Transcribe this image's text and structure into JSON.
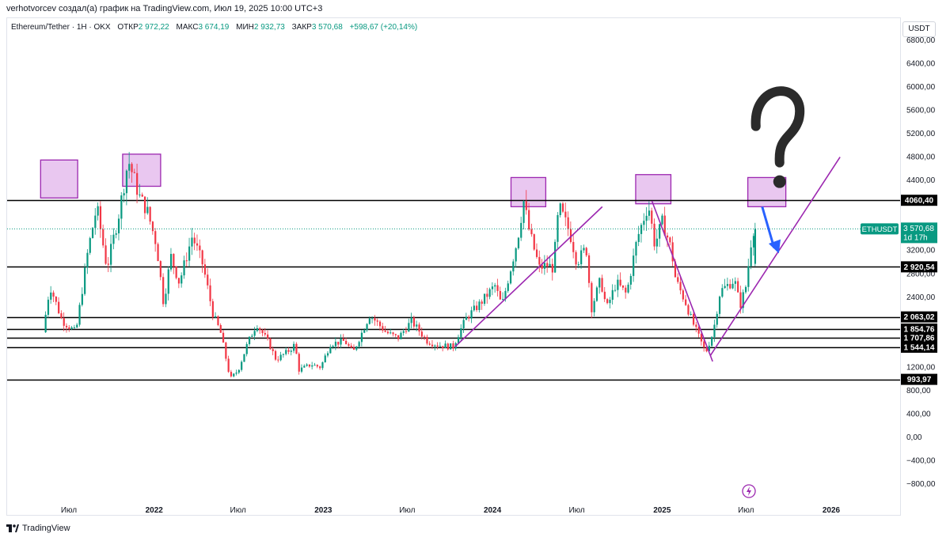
{
  "header": {
    "caption": "verhotvorcev создал(а) график на TradingView.com, Июл 19, 2025 10:00 UTC+3"
  },
  "legend": {
    "symbol": "Ethereum/Tether · 1H · OKX",
    "open_label": "ОТКР",
    "open_value": "2 972,22",
    "high_label": "МАКС",
    "high_value": "3 674,19",
    "low_label": "МИН",
    "low_value": "2 932,73",
    "close_label": "ЗАКР",
    "close_value": "3 570,68",
    "change": "+598,67 (+20,14%)"
  },
  "price_axis": {
    "currency": "USDT"
  },
  "footer": {
    "brand": "TradingView"
  },
  "colors": {
    "up": "#089981",
    "down": "#f23645",
    "zone_fill": "#e9c7f0",
    "zone_stroke": "#9c27b0",
    "trendline": "#9c27b0",
    "arrow": "#2962ff",
    "level": "#000000",
    "price_tag": "#089981"
  },
  "icons": {
    "lightning": "lightning-icon",
    "question_mark": "question-mark-annotation",
    "arrow": "arrow-annotation"
  },
  "chart_data": {
    "type": "candlestick",
    "symbol": "ETHUSDT",
    "timeframe": "1H",
    "y_ticks": [
      -800,
      -400,
      0,
      400,
      800,
      1200,
      2400,
      2800,
      3200,
      4400,
      4800,
      5200,
      5600,
      6000,
      6400,
      6800
    ],
    "y_tick_labels": [
      "−800,00",
      "−400,00",
      "0,00",
      "400,00",
      "800,00",
      "1200,00",
      "2400,00",
      "2800,00",
      "3200,00",
      "4400,00",
      "4800,00",
      "5200,00",
      "5600,00",
      "6000,00",
      "6400,00",
      "6800,00"
    ],
    "x_ticks": [
      {
        "date": "2021-07-01",
        "label": "Июл",
        "bold": false
      },
      {
        "date": "2022-01-01",
        "label": "2022",
        "bold": true
      },
      {
        "date": "2022-07-01",
        "label": "Июл",
        "bold": false
      },
      {
        "date": "2023-01-01",
        "label": "2023",
        "bold": true
      },
      {
        "date": "2023-07-01",
        "label": "Июл",
        "bold": false
      },
      {
        "date": "2024-01-01",
        "label": "2024",
        "bold": true
      },
      {
        "date": "2024-07-01",
        "label": "Июл",
        "bold": false
      },
      {
        "date": "2025-01-01",
        "label": "2025",
        "bold": true
      },
      {
        "date": "2025-07-01",
        "label": "Июл",
        "bold": false
      },
      {
        "date": "2026-01-01",
        "label": "2026",
        "bold": true
      }
    ],
    "levels": [
      {
        "value": 4060.4,
        "label": "4060,40"
      },
      {
        "value": 2920.54,
        "label": "2 920,54"
      },
      {
        "value": 2063.02,
        "label": "2 063,02"
      },
      {
        "value": 1854.76,
        "label": "1 854,76"
      },
      {
        "value": 1707.86,
        "label": "1 707,86"
      },
      {
        "value": 1544.14,
        "label": "1 544,14"
      },
      {
        "value": 993.97,
        "label": "993,97"
      }
    ],
    "last_price": {
      "symbol_label": "ETHUSDT",
      "value": 3570.68,
      "value_label": "3 570,68",
      "countdown": "1d 17h"
    },
    "path_points": [
      [
        "2021-05-10",
        1800
      ],
      [
        "2021-05-25",
        2600
      ],
      [
        "2021-06-20",
        2000
      ],
      [
        "2021-07-20",
        1800
      ],
      [
        "2021-08-15",
        3200
      ],
      [
        "2021-09-03",
        3950
      ],
      [
        "2021-09-25",
        2900
      ],
      [
        "2021-10-20",
        3800
      ],
      [
        "2021-11-10",
        4750
      ],
      [
        "2021-12-05",
        4100
      ],
      [
        "2021-12-20",
        3900
      ],
      [
        "2022-01-10",
        3300
      ],
      [
        "2022-01-25",
        2300
      ],
      [
        "2022-02-10",
        3100
      ],
      [
        "2022-02-28",
        2650
      ],
      [
        "2022-03-28",
        3450
      ],
      [
        "2022-04-20",
        2950
      ],
      [
        "2022-05-12",
        2100
      ],
      [
        "2022-05-28",
        1800
      ],
      [
        "2022-06-18",
        1000
      ],
      [
        "2022-07-05",
        1150
      ],
      [
        "2022-07-25",
        1600
      ],
      [
        "2022-08-14",
        1950
      ],
      [
        "2022-09-10",
        1600
      ],
      [
        "2022-09-25",
        1330
      ],
      [
        "2022-10-25",
        1500
      ],
      [
        "2022-11-05",
        1600
      ],
      [
        "2022-11-12",
        1150
      ],
      [
        "2022-12-10",
        1250
      ],
      [
        "2022-12-30",
        1200
      ],
      [
        "2023-01-20",
        1600
      ],
      [
        "2023-02-20",
        1650
      ],
      [
        "2023-03-10",
        1450
      ],
      [
        "2023-04-15",
        2100
      ],
      [
        "2023-05-20",
        1800
      ],
      [
        "2023-06-15",
        1700
      ],
      [
        "2023-07-14",
        1990
      ],
      [
        "2023-08-17",
        1650
      ],
      [
        "2023-09-10",
        1580
      ],
      [
        "2023-10-12",
        1550
      ],
      [
        "2023-10-25",
        1800
      ],
      [
        "2023-11-10",
        2050
      ],
      [
        "2023-12-10",
        2300
      ],
      [
        "2024-01-10",
        2600
      ],
      [
        "2024-01-25",
        2250
      ],
      [
        "2024-02-28",
        3400
      ],
      [
        "2024-03-12",
        4050
      ],
      [
        "2024-03-25",
        3500
      ],
      [
        "2024-04-15",
        2900
      ],
      [
        "2024-05-01",
        2950
      ],
      [
        "2024-05-15",
        2900
      ],
      [
        "2024-05-27",
        3950
      ],
      [
        "2024-06-20",
        3500
      ],
      [
        "2024-07-05",
        3000
      ],
      [
        "2024-07-25",
        3250
      ],
      [
        "2024-08-05",
        2200
      ],
      [
        "2024-08-25",
        2700
      ],
      [
        "2024-09-07",
        2200
      ],
      [
        "2024-09-28",
        2650
      ],
      [
        "2024-10-20",
        2450
      ],
      [
        "2024-11-12",
        3400
      ],
      [
        "2024-12-06",
        4000
      ],
      [
        "2024-12-20",
        3300
      ],
      [
        "2025-01-06",
        3700
      ],
      [
        "2025-01-25",
        3200
      ],
      [
        "2025-02-03",
        2700
      ],
      [
        "2025-02-25",
        2300
      ],
      [
        "2025-03-10",
        2000
      ],
      [
        "2025-04-09",
        1450
      ],
      [
        "2025-04-25",
        1800
      ],
      [
        "2025-05-10",
        2500
      ],
      [
        "2025-06-10",
        2700
      ],
      [
        "2025-06-22",
        2250
      ],
      [
        "2025-07-05",
        2600
      ],
      [
        "2025-07-19",
        3570
      ]
    ],
    "zones": [
      {
        "start": "2021-05-01",
        "end": "2021-07-20",
        "low": 4100,
        "high": 4750
      },
      {
        "start": "2021-10-25",
        "end": "2022-01-15",
        "low": 4300,
        "high": 4850
      },
      {
        "start": "2024-02-10",
        "end": "2024-04-25",
        "low": 3950,
        "high": 4450
      },
      {
        "start": "2024-11-05",
        "end": "2025-01-20",
        "low": 4000,
        "high": 4500
      },
      {
        "start": "2025-07-05",
        "end": "2025-09-25",
        "low": 3950,
        "high": 4450
      }
    ],
    "trendlines": [
      {
        "from": [
          "2023-10-12",
          1550
        ],
        "to": [
          "2024-08-25",
          3950
        ]
      },
      {
        "from": [
          "2024-12-10",
          4050
        ],
        "to": [
          "2025-04-20",
          1300
        ]
      },
      {
        "from": [
          "2025-04-15",
          1400
        ],
        "to": [
          "2026-01-20",
          4800
        ]
      }
    ],
    "arrow": {
      "from": [
        "2025-08-05",
        3950
      ],
      "to": [
        "2025-09-10",
        3150
      ]
    },
    "question_mark": {
      "date": "2025-09-15",
      "value": 5300
    }
  }
}
